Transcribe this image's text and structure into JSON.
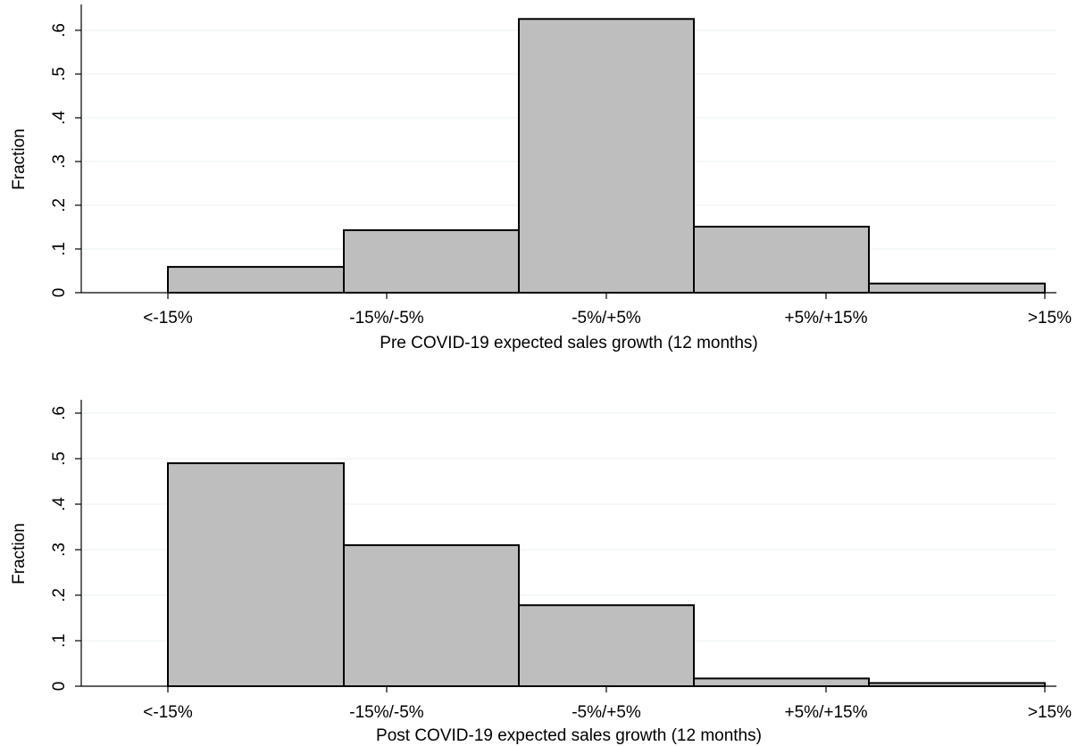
{
  "chart_data": [
    {
      "type": "bar",
      "title": "",
      "xlabel": "Pre COVID-19 expected sales growth (12 months)",
      "ylabel": "Fraction",
      "categories": [
        "<-15%",
        "-15%/-5%",
        "-5%/+5%",
        "+5%/+15%",
        ">15%"
      ],
      "values": [
        0.059,
        0.143,
        0.626,
        0.151,
        0.021
      ],
      "yticks": [
        "0",
        ".1",
        ".2",
        ".3",
        ".4",
        ".5",
        ".6"
      ],
      "ytick_values": [
        0,
        0.1,
        0.2,
        0.3,
        0.4,
        0.5,
        0.6
      ],
      "ylim": [
        0,
        0.63
      ],
      "grid": true,
      "legend": "none"
    },
    {
      "type": "bar",
      "title": "",
      "xlabel": "Post COVID-19 expected sales growth (12 months)",
      "ylabel": "Fraction",
      "categories": [
        "<-15%",
        "-15%/-5%",
        "-5%/+5%",
        "+5%/+15%",
        ">15%"
      ],
      "values": [
        0.49,
        0.31,
        0.178,
        0.017,
        0.007
      ],
      "yticks": [
        "0",
        ".1",
        ".2",
        ".3",
        ".4",
        ".5",
        ".6"
      ],
      "ytick_values": [
        0,
        0.1,
        0.2,
        0.3,
        0.4,
        0.5,
        0.6
      ],
      "ylim": [
        0,
        0.63
      ],
      "grid": true,
      "legend": "none"
    }
  ],
  "colors": {
    "bar_fill": "#bebebe",
    "bar_stroke": "#000000",
    "grid": "#eaf2f3",
    "axis": "#000000"
  }
}
